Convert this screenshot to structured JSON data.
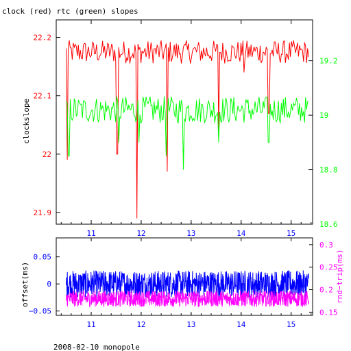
{
  "title": "clock (red) rtc (green) slopes",
  "footer": "2008-02-10 monopole",
  "colors": {
    "red": "#ff0000",
    "green": "#00ff00",
    "blue": "#0000ff",
    "magenta": "#ff00ff",
    "axis": "#000000"
  },
  "chart_data": [
    {
      "type": "line",
      "ylabel": "clockslope",
      "xlim": [
        10.3,
        15.43
      ],
      "ylim": [
        21.88,
        22.23
      ],
      "y2lim": [
        18.6,
        19.35
      ],
      "xticks": [
        11,
        12,
        13,
        14,
        15
      ],
      "yticks": [
        21.9,
        22,
        22.1,
        22.2
      ],
      "y2ticks": [
        18.6,
        18.8,
        19,
        19.2
      ],
      "series": [
        {
          "color": "red",
          "axis": "left",
          "base": 22.175,
          "amp": 0.02,
          "spikes": [
            [
              10.52,
              21.99
            ],
            [
              11.52,
              22.0
            ],
            [
              11.92,
              21.89
            ],
            [
              12.52,
              21.97
            ],
            [
              13.55,
              22.04
            ],
            [
              14.05,
              22.14
            ],
            [
              14.55,
              22.07
            ]
          ]
        },
        {
          "color": "green",
          "axis": "right",
          "base": 19.02,
          "amp": 0.05,
          "spikes": [
            [
              10.55,
              18.85
            ],
            [
              11.55,
              18.9
            ],
            [
              11.95,
              18.9
            ],
            [
              12.5,
              18.85
            ],
            [
              12.85,
              18.8
            ],
            [
              13.55,
              18.9
            ],
            [
              14.55,
              18.9
            ]
          ]
        }
      ]
    },
    {
      "type": "line",
      "ylabel": "offset(ms)",
      "y2label": "rnd−trip(ms)",
      "xlim": [
        10.3,
        15.43
      ],
      "ylim": [
        -0.058,
        0.085
      ],
      "y2lim": [
        0.143,
        0.315
      ],
      "xticks": [
        11,
        12,
        13,
        14,
        15
      ],
      "yticks": [
        -0.05,
        0,
        0.05
      ],
      "ytick_labels": [
        "−0.05",
        "0",
        "0.05"
      ],
      "y2ticks": [
        0.15,
        0.2,
        0.25,
        0.3
      ],
      "series": [
        {
          "color": "blue",
          "axis": "left",
          "base": 0.0,
          "amp": 0.025
        },
        {
          "color": "magenta",
          "axis": "right",
          "base": 0.18,
          "amp": 0.018
        }
      ]
    }
  ]
}
